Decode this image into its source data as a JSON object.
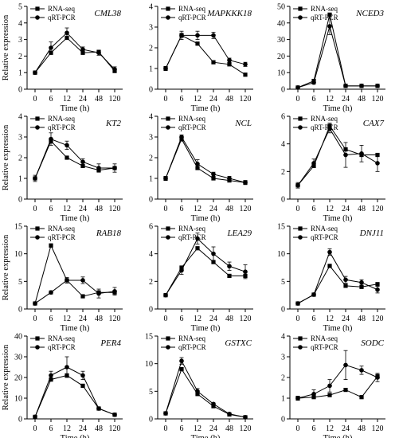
{
  "chart_data": [
    {
      "type": "line",
      "title": "CML38",
      "xlabel": "Time (h)",
      "ylabel": "Relative expression",
      "categories": [
        "0",
        "6",
        "12",
        "24",
        "48",
        "120"
      ],
      "ylim": [
        0,
        5
      ],
      "yticks": [
        0,
        1,
        2,
        3,
        4,
        5
      ],
      "legend": "top-left",
      "series": [
        {
          "name": "RNA-seq",
          "values": [
            1.0,
            2.2,
            3.1,
            2.2,
            2.25,
            1.1
          ],
          "err": [
            0.05,
            0.1,
            0.1,
            0.1,
            0.1,
            0.1
          ]
        },
        {
          "name": "qRT-PCR",
          "values": [
            1.0,
            2.5,
            3.4,
            2.4,
            2.2,
            1.2
          ],
          "err": [
            0.1,
            0.35,
            0.3,
            0.15,
            0.15,
            0.15
          ]
        }
      ]
    },
    {
      "type": "line",
      "title": "MAPKKK18",
      "xlabel": "Time (h)",
      "ylabel": "",
      "categories": [
        "0",
        "6",
        "12",
        "24",
        "48",
        "120"
      ],
      "ylim": [
        0,
        4
      ],
      "yticks": [
        0,
        1,
        2,
        3,
        4
      ],
      "legend": "top-left",
      "series": [
        {
          "name": "RNA-seq",
          "values": [
            1.0,
            2.6,
            2.2,
            1.3,
            1.2,
            0.7
          ],
          "err": [
            0.1,
            0.1,
            0.05,
            0.05,
            0.05,
            0.05
          ]
        },
        {
          "name": "qRT-PCR",
          "values": [
            1.0,
            2.6,
            2.6,
            2.6,
            1.4,
            1.2
          ],
          "err": [
            0.1,
            0.2,
            0.2,
            0.15,
            0.1,
            0.1
          ]
        }
      ]
    },
    {
      "type": "line",
      "title": "NCED3",
      "xlabel": "Time (h)",
      "ylabel": "",
      "categories": [
        "0",
        "6",
        "12",
        "24",
        "48",
        "120"
      ],
      "ylim": [
        0,
        50
      ],
      "yticks": [
        0,
        10,
        20,
        30,
        40,
        50
      ],
      "legend": "top-left",
      "series": [
        {
          "name": "RNA-seq",
          "values": [
            1,
            5,
            45,
            2,
            2,
            2
          ],
          "err": [
            0.3,
            0.5,
            1,
            0.2,
            0.2,
            0.2
          ]
        },
        {
          "name": "qRT-PCR",
          "values": [
            1,
            4,
            38,
            2,
            2,
            2
          ],
          "err": [
            0.3,
            1,
            5,
            0.3,
            0.2,
            0.2
          ]
        }
      ]
    },
    {
      "type": "line",
      "title": "KT2",
      "xlabel": "Time (h)",
      "ylabel": "Relative expression",
      "categories": [
        "0",
        "6",
        "12",
        "24",
        "48",
        "120"
      ],
      "ylim": [
        0,
        4
      ],
      "yticks": [
        0,
        1,
        2,
        3,
        4
      ],
      "legend": "top-left",
      "series": [
        {
          "name": "RNA-seq",
          "values": [
            1.0,
            2.8,
            2.0,
            1.6,
            1.4,
            1.5
          ],
          "err": [
            0.05,
            0.1,
            0.05,
            0.05,
            0.05,
            0.05
          ]
        },
        {
          "name": "qRT-PCR",
          "values": [
            1.0,
            2.9,
            2.6,
            1.8,
            1.5,
            1.5
          ],
          "err": [
            0.15,
            0.3,
            0.2,
            0.15,
            0.2,
            0.2
          ]
        }
      ]
    },
    {
      "type": "line",
      "title": "NCL",
      "xlabel": "Time (h)",
      "ylabel": "",
      "categories": [
        "0",
        "6",
        "12",
        "24",
        "48",
        "120"
      ],
      "ylim": [
        0,
        4
      ],
      "yticks": [
        0,
        1,
        2,
        3,
        4
      ],
      "legend": "top-left",
      "series": [
        {
          "name": "RNA-seq",
          "values": [
            1.0,
            2.9,
            1.5,
            1.0,
            0.9,
            0.8
          ],
          "err": [
            0.05,
            0.1,
            0.05,
            0.05,
            0.05,
            0.05
          ]
        },
        {
          "name": "qRT-PCR",
          "values": [
            1.0,
            3.0,
            1.7,
            1.2,
            1.0,
            0.8
          ],
          "err": [
            0.1,
            0.1,
            0.2,
            0.1,
            0.1,
            0.1
          ]
        }
      ]
    },
    {
      "type": "line",
      "title": "CAX7",
      "xlabel": "Time (h)",
      "ylabel": "",
      "categories": [
        "0",
        "6",
        "12",
        "24",
        "48",
        "120"
      ],
      "ylim": [
        0,
        6
      ],
      "yticks": [
        0,
        2,
        4,
        6
      ],
      "legend": "top-left",
      "series": [
        {
          "name": "RNA-seq",
          "values": [
            1.0,
            2.4,
            5.3,
            3.6,
            3.2,
            3.2
          ],
          "err": [
            0.1,
            0.1,
            0.2,
            0.1,
            0.1,
            0.1
          ]
        },
        {
          "name": "qRT-PCR",
          "values": [
            1.0,
            2.6,
            5.1,
            3.2,
            3.3,
            2.6
          ],
          "err": [
            0.2,
            0.3,
            0.3,
            0.9,
            0.6,
            0.6
          ]
        }
      ]
    },
    {
      "type": "line",
      "title": "RAB18",
      "xlabel": "Time (h)",
      "ylabel": "Relative expression",
      "categories": [
        "0",
        "6",
        "12",
        "24",
        "48",
        "120"
      ],
      "ylim": [
        0,
        15
      ],
      "yticks": [
        0,
        5,
        10,
        15
      ],
      "legend": "top-left",
      "series": [
        {
          "name": "RNA-seq",
          "values": [
            1,
            11.5,
            5.2,
            2.3,
            3,
            3
          ],
          "err": [
            0.1,
            0.3,
            0.2,
            0.1,
            0.1,
            0.1
          ]
        },
        {
          "name": "qRT-PCR",
          "values": [
            1,
            3,
            5.2,
            5.2,
            2.8,
            3.2
          ],
          "err": [
            0.1,
            0.3,
            0.5,
            0.6,
            0.8,
            0.7
          ]
        }
      ]
    },
    {
      "type": "line",
      "title": "LEA29",
      "xlabel": "Time (h)",
      "ylabel": "",
      "categories": [
        "0",
        "6",
        "12",
        "24",
        "48",
        "120"
      ],
      "ylim": [
        0,
        6
      ],
      "yticks": [
        0,
        2,
        4,
        6
      ],
      "legend": "top-left",
      "series": [
        {
          "name": "RNA-seq",
          "values": [
            1.0,
            3.0,
            4.4,
            3.4,
            2.4,
            2.4
          ],
          "err": [
            0.05,
            0.1,
            0.1,
            0.1,
            0.05,
            0.05
          ]
        },
        {
          "name": "qRT-PCR",
          "values": [
            1.0,
            2.8,
            5.1,
            4.0,
            3.1,
            2.7
          ],
          "err": [
            0.1,
            0.3,
            0.4,
            0.5,
            0.3,
            0.5
          ]
        }
      ]
    },
    {
      "type": "line",
      "title": "DNJ11",
      "xlabel": "Time (h)",
      "ylabel": "",
      "categories": [
        "0",
        "6",
        "12",
        "24",
        "48",
        "120"
      ],
      "ylim": [
        0,
        15
      ],
      "yticks": [
        0,
        5,
        10,
        15
      ],
      "legend": "top-left",
      "series": [
        {
          "name": "RNA-seq",
          "values": [
            1,
            2.6,
            7.8,
            4.2,
            4,
            4.5
          ],
          "err": [
            0.1,
            0.1,
            0.3,
            0.1,
            0.1,
            0.1
          ]
        },
        {
          "name": "qRT-PCR",
          "values": [
            1,
            2.6,
            10.3,
            5.3,
            4.8,
            3.5
          ],
          "err": [
            0.1,
            0.2,
            0.6,
            0.6,
            0.5,
            0.6
          ]
        }
      ]
    },
    {
      "type": "line",
      "title": "PER4",
      "xlabel": "Time (h)",
      "ylabel": "Relative expression",
      "categories": [
        "0",
        "6",
        "12",
        "24",
        "48",
        "120"
      ],
      "ylim": [
        0,
        40
      ],
      "yticks": [
        0,
        10,
        20,
        30,
        40
      ],
      "legend": "top-left",
      "series": [
        {
          "name": "RNA-seq",
          "values": [
            1,
            19,
            21,
            16,
            5,
            2
          ],
          "err": [
            0.2,
            0.8,
            0.8,
            0.5,
            0.3,
            0.1
          ]
        },
        {
          "name": "qRT-PCR",
          "values": [
            1,
            21,
            25,
            21,
            5,
            2
          ],
          "err": [
            0.2,
            2,
            5,
            2,
            0.5,
            0.2
          ]
        }
      ]
    },
    {
      "type": "line",
      "title": "GSTXC",
      "xlabel": "Time (h)",
      "ylabel": "",
      "categories": [
        "0",
        "6",
        "12",
        "24",
        "48",
        "120"
      ],
      "ylim": [
        0,
        15
      ],
      "yticks": [
        0,
        5,
        10,
        15
      ],
      "legend": "top-left",
      "series": [
        {
          "name": "RNA-seq",
          "values": [
            1,
            9,
            4.5,
            2.3,
            0.8,
            0.3
          ],
          "err": [
            0.1,
            0.3,
            0.1,
            0.1,
            0.05,
            0.05
          ]
        },
        {
          "name": "qRT-PCR",
          "values": [
            1,
            10.5,
            5,
            2.7,
            0.9,
            0.3
          ],
          "err": [
            0.1,
            0.6,
            0.5,
            0.2,
            0.1,
            0.05
          ]
        }
      ]
    },
    {
      "type": "line",
      "title": "SODC",
      "xlabel": "Time (h)",
      "ylabel": "",
      "categories": [
        "0",
        "6",
        "12",
        "24",
        "48",
        "120"
      ],
      "ylim": [
        0,
        4
      ],
      "yticks": [
        0,
        1,
        2,
        3,
        4
      ],
      "legend": "top-left",
      "series": [
        {
          "name": "RNA-seq",
          "values": [
            1.0,
            1.05,
            1.15,
            1.4,
            1.05,
            2.05
          ],
          "err": [
            0.05,
            0.05,
            0.05,
            0.05,
            0.05,
            0.1
          ]
        },
        {
          "name": "qRT-PCR",
          "values": [
            1.0,
            1.2,
            1.6,
            2.6,
            2.35,
            2.0
          ],
          "err": [
            0.1,
            0.2,
            0.3,
            0.7,
            0.2,
            0.2
          ]
        }
      ]
    }
  ]
}
